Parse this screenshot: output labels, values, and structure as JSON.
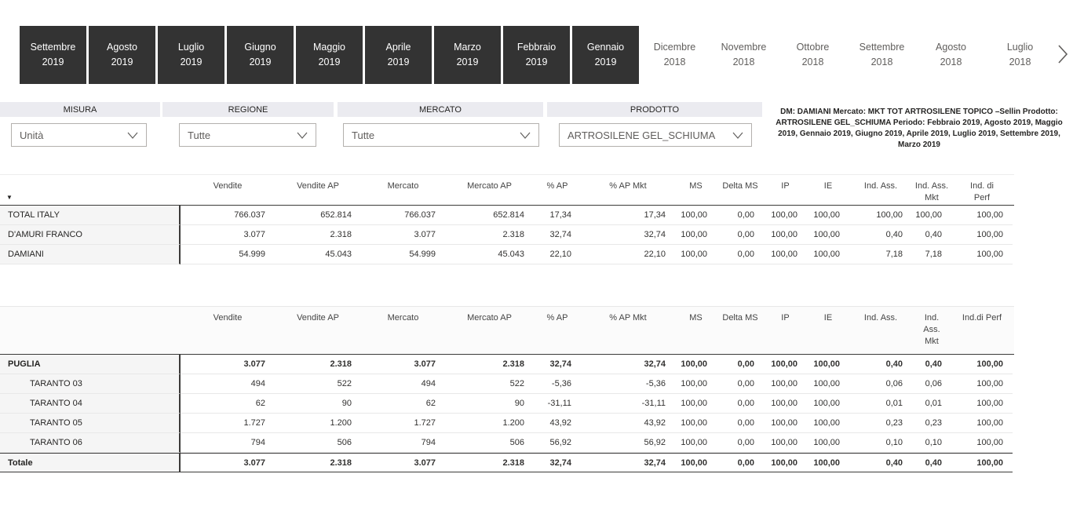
{
  "months": {
    "items": [
      {
        "month": "Settembre",
        "year": "2019",
        "selected": true
      },
      {
        "month": "Agosto",
        "year": "2019",
        "selected": true
      },
      {
        "month": "Luglio",
        "year": "2019",
        "selected": true
      },
      {
        "month": "Giugno",
        "year": "2019",
        "selected": true
      },
      {
        "month": "Maggio",
        "year": "2019",
        "selected": true
      },
      {
        "month": "Aprile",
        "year": "2019",
        "selected": true
      },
      {
        "month": "Marzo",
        "year": "2019",
        "selected": true
      },
      {
        "month": "Febbraio",
        "year": "2019",
        "selected": true
      },
      {
        "month": "Gennaio",
        "year": "2019",
        "selected": true
      },
      {
        "month": "Dicembre",
        "year": "2018",
        "selected": false
      },
      {
        "month": "Novembre",
        "year": "2018",
        "selected": false
      },
      {
        "month": "Ottobre",
        "year": "2018",
        "selected": false
      },
      {
        "month": "Settembre",
        "year": "2018",
        "selected": false
      },
      {
        "month": "Agosto",
        "year": "2018",
        "selected": false
      },
      {
        "month": "Luglio",
        "year": "2018",
        "selected": false
      }
    ],
    "selected_color": "#333333"
  },
  "filters": [
    {
      "label": "MISURA",
      "value": "Unità"
    },
    {
      "label": "REGIONE",
      "value": "Tutte"
    },
    {
      "label": "MERCATO",
      "value": "Tutte"
    },
    {
      "label": "PRODOTTO",
      "value": "ARTROSILENE GEL_SCHIUMA"
    }
  ],
  "summary": {
    "text": "DM:  DAMIANI Mercato:  MKT TOT ARTROSILENE TOPICO  –Sellin Prodotto: ARTROSILENE GEL_SCHIUMA Periodo: Febbraio 2019, Agosto 2019, Maggio 2019, Gennaio 2019, Giugno 2019, Aprile 2019, Luglio 2019, Settembre 2019, Marzo 2019"
  },
  "table1": {
    "columns": [
      "",
      "Vendite",
      "Vendite AP",
      "Mercato",
      "Mercato AP",
      "% AP",
      "% AP Mkt",
      "MS",
      "Delta MS",
      "IP",
      "IE",
      "Ind. Ass.",
      "Ind. Ass.\nMkt",
      "Ind. di\nPerf"
    ],
    "rows": [
      {
        "label": "TOTAL ITALY",
        "bold": false,
        "indent": false,
        "total": false,
        "values": [
          "766.037",
          "652.814",
          "766.037",
          "652.814",
          "17,34",
          "17,34",
          "100,00",
          "0,00",
          "100,00",
          "100,00",
          "100,00",
          "100,00",
          "100,00"
        ]
      },
      {
        "label": "D'AMURI FRANCO",
        "bold": false,
        "indent": false,
        "total": false,
        "values": [
          "3.077",
          "2.318",
          "3.077",
          "2.318",
          "32,74",
          "32,74",
          "100,00",
          "0,00",
          "100,00",
          "100,00",
          "0,40",
          "0,40",
          "100,00"
        ]
      },
      {
        "label": "DAMIANI",
        "bold": false,
        "indent": false,
        "total": false,
        "values": [
          "54.999",
          "45.043",
          "54.999",
          "45.043",
          "22,10",
          "22,10",
          "100,00",
          "0,00",
          "100,00",
          "100,00",
          "7,18",
          "7,18",
          "100,00"
        ]
      }
    ]
  },
  "table2": {
    "columns": [
      "",
      "Vendite",
      "Vendite AP",
      "Mercato",
      "Mercato AP",
      "% AP",
      "% AP Mkt",
      "MS",
      "Delta MS",
      "IP",
      "IE",
      "Ind. Ass.",
      "Ind.\nAss.\nMkt",
      "Ind.di Perf"
    ],
    "rows": [
      {
        "label": "PUGLIA",
        "bold": true,
        "indent": false,
        "total": false,
        "values": [
          "3.077",
          "2.318",
          "3.077",
          "2.318",
          "32,74",
          "32,74",
          "100,00",
          "0,00",
          "100,00",
          "100,00",
          "0,40",
          "0,40",
          "100,00"
        ]
      },
      {
        "label": "TARANTO 03",
        "bold": false,
        "indent": true,
        "total": false,
        "values": [
          "494",
          "522",
          "494",
          "522",
          "-5,36",
          "-5,36",
          "100,00",
          "0,00",
          "100,00",
          "100,00",
          "0,06",
          "0,06",
          "100,00"
        ]
      },
      {
        "label": "TARANTO 04",
        "bold": false,
        "indent": true,
        "total": false,
        "values": [
          "62",
          "90",
          "62",
          "90",
          "-31,11",
          "-31,11",
          "100,00",
          "0,00",
          "100,00",
          "100,00",
          "0,01",
          "0,01",
          "100,00"
        ]
      },
      {
        "label": "TARANTO 05",
        "bold": false,
        "indent": true,
        "total": false,
        "values": [
          "1.727",
          "1.200",
          "1.727",
          "1.200",
          "43,92",
          "43,92",
          "100,00",
          "0,00",
          "100,00",
          "100,00",
          "0,23",
          "0,23",
          "100,00"
        ]
      },
      {
        "label": "TARANTO 06",
        "bold": false,
        "indent": true,
        "total": false,
        "values": [
          "794",
          "506",
          "794",
          "506",
          "56,92",
          "56,92",
          "100,00",
          "0,00",
          "100,00",
          "100,00",
          "0,10",
          "0,10",
          "100,00"
        ]
      },
      {
        "label": "Totale",
        "bold": true,
        "indent": false,
        "total": true,
        "values": [
          "3.077",
          "2.318",
          "3.077",
          "2.318",
          "32,74",
          "32,74",
          "100,00",
          "0,00",
          "100,00",
          "100,00",
          "0,40",
          "0,40",
          "100,00"
        ]
      }
    ]
  },
  "icons": {
    "filter_arrow": "▼"
  }
}
